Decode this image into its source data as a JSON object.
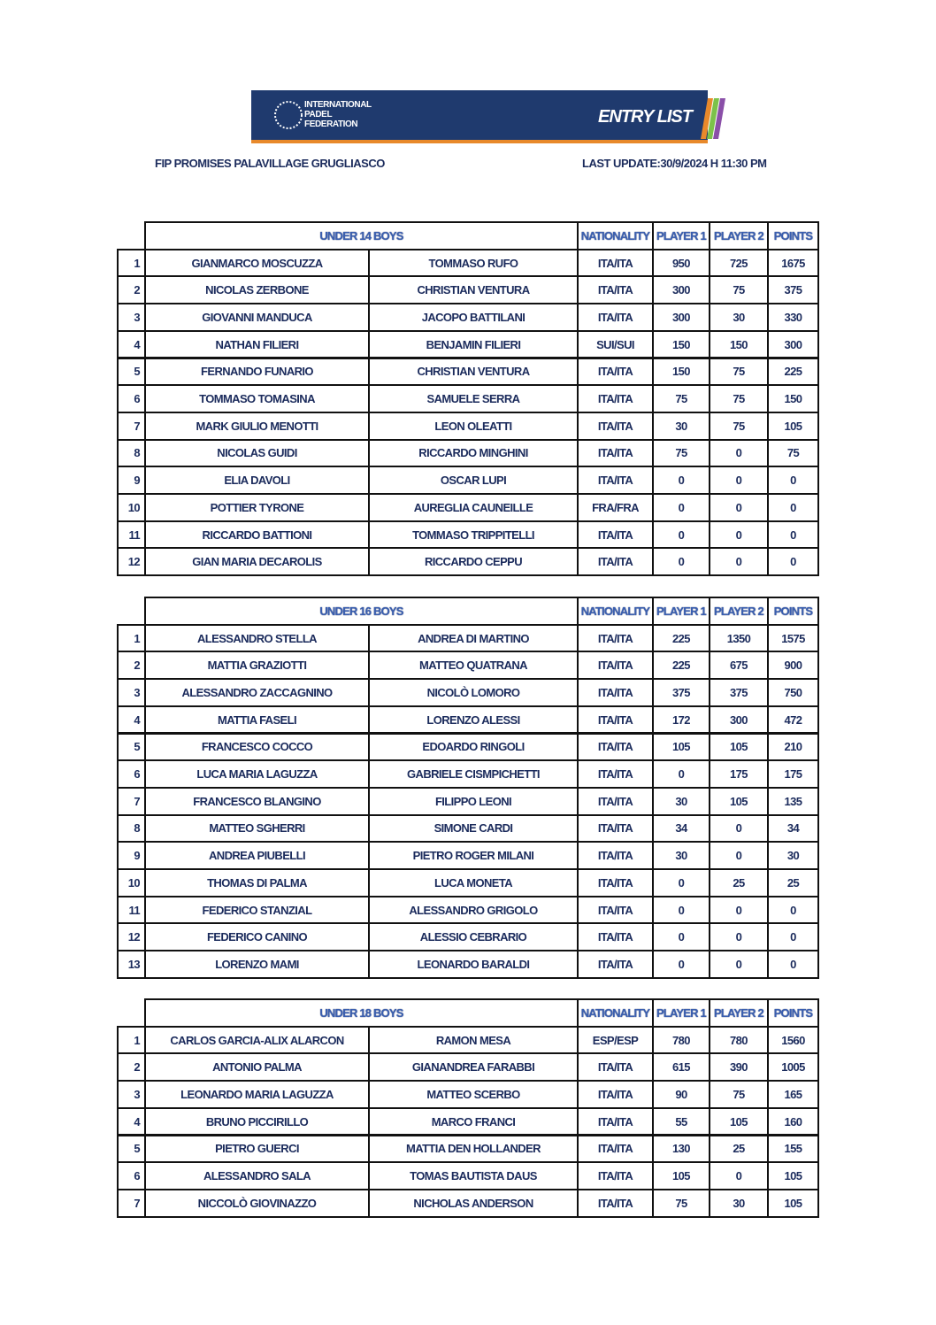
{
  "header": {
    "logo_text": [
      "INTERNATIONAL",
      "PADEL",
      "FEDERATION"
    ],
    "banner_title": "ENTRY LIST",
    "event": "FIP PROMISES PALAVILLAGE GRUGLIASCO",
    "last_update": "LAST UPDATE:30/9/2024 H 11:30 PM"
  },
  "tables": [
    {
      "category": "UNDER 14 BOYS",
      "columns": [
        "NATIONALITY",
        "PLAYER 1",
        "PLAYER 2",
        "POINTS"
      ],
      "rows": [
        [
          1,
          "GIANMARCO MOSCUZZA",
          "TOMMASO RUFO",
          "ITA/ITA",
          950,
          725,
          1675
        ],
        [
          2,
          "NICOLAS ZERBONE",
          "CHRISTIAN VENTURA",
          "ITA/ITA",
          300,
          75,
          375
        ],
        [
          3,
          "GIOVANNI MANDUCA",
          "JACOPO BATTILANI",
          "ITA/ITA",
          300,
          30,
          330
        ],
        [
          4,
          "NATHAN FILIERI",
          "BENJAMIN FILIERI",
          "SUI/SUI",
          150,
          150,
          300
        ],
        [
          5,
          "FERNANDO FUNARIO",
          "CHRISTIAN VENTURA",
          "ITA/ITA",
          150,
          75,
          225
        ],
        [
          6,
          "TOMMASO TOMASINA",
          "SAMUELE SERRA",
          "ITA/ITA",
          75,
          75,
          150
        ],
        [
          7,
          "MARK GIULIO MENOTTI",
          "LEON OLEATTI",
          "ITA/ITA",
          30,
          75,
          105
        ],
        [
          8,
          "NICOLAS GUIDI",
          "RICCARDO MINGHINI",
          "ITA/ITA",
          75,
          0,
          75
        ],
        [
          9,
          "ELIA DAVOLI",
          "OSCAR LUPI",
          "ITA/ITA",
          0,
          0,
          0
        ],
        [
          10,
          "POTTIER TYRONE",
          "AUREGLIA CAUNEILLE",
          "FRA/FRA",
          0,
          0,
          0
        ],
        [
          11,
          "RICCARDO BATTIONI",
          "TOMMASO TRIPPITELLI",
          "ITA/ITA",
          0,
          0,
          0
        ],
        [
          12,
          "GIAN MARIA DECAROLIS",
          "RICCARDO CEPPU",
          "ITA/ITA",
          0,
          0,
          0
        ]
      ]
    },
    {
      "category": "UNDER 16 BOYS",
      "columns": [
        "NATIONALITY",
        "PLAYER 1",
        "PLAYER 2",
        "POINTS"
      ],
      "rows": [
        [
          1,
          "ALESSANDRO STELLA",
          "ANDREA DI MARTINO",
          "ITA/ITA",
          225,
          1350,
          1575
        ],
        [
          2,
          "MATTIA GRAZIOTTI",
          "MATTEO QUATRANA",
          "ITA/ITA",
          225,
          675,
          900
        ],
        [
          3,
          "ALESSANDRO ZACCAGNINO",
          "NICOLÒ LOMORO",
          "ITA/ITA",
          375,
          375,
          750
        ],
        [
          4,
          "MATTIA FASELI",
          "LORENZO ALESSI",
          "ITA/ITA",
          172,
          300,
          472
        ],
        [
          5,
          "FRANCESCO COCCO",
          "EDOARDO RINGOLI",
          "ITA/ITA",
          105,
          105,
          210
        ],
        [
          6,
          "LUCA MARIA LAGUZZA",
          "GABRIELE CISMPICHETTI",
          "ITA/ITA",
          0,
          175,
          175
        ],
        [
          7,
          "FRANCESCO BLANGINO",
          "FILIPPO LEONI",
          "ITA/ITA",
          30,
          105,
          135
        ],
        [
          8,
          "MATTEO SGHERRI",
          "SIMONE CARDI",
          "ITA/ITA",
          34,
          0,
          34
        ],
        [
          9,
          "ANDREA PIUBELLI",
          "PIETRO ROGER MILANI",
          "ITA/ITA",
          30,
          0,
          30
        ],
        [
          10,
          "THOMAS DI PALMA",
          "LUCA MONETA",
          "ITA/ITA",
          0,
          25,
          25
        ],
        [
          11,
          "FEDERICO STANZIAL",
          "ALESSANDRO GRIGOLO",
          "ITA/ITA",
          0,
          0,
          0
        ],
        [
          12,
          "FEDERICO CANINO",
          "ALESSIO CEBRARIO",
          "ITA/ITA",
          0,
          0,
          0
        ],
        [
          13,
          "LORENZO MAMI",
          "LEONARDO BARALDI",
          "ITA/ITA",
          0,
          0,
          0
        ]
      ]
    },
    {
      "category": "UNDER 18 BOYS",
      "columns": [
        "NATIONALITY",
        "PLAYER 1",
        "PLAYER 2",
        "POINTS"
      ],
      "rows": [
        [
          1,
          "CARLOS GARCIA-ALIX ALARCON",
          "RAMON MESA",
          "ESP/ESP",
          780,
          780,
          1560
        ],
        [
          2,
          "ANTONIO PALMA",
          "GIANANDREA FARABBI",
          "ITA/ITA",
          615,
          390,
          1005
        ],
        [
          3,
          "LEONARDO MARIA LAGUZZA",
          "MATTEO SCERBO",
          "ITA/ITA",
          90,
          75,
          165
        ],
        [
          4,
          "BRUNO PICCIRILLO",
          "MARCO FRANCI",
          "ITA/ITA",
          55,
          105,
          160
        ],
        [
          5,
          "PIETRO GUERCI",
          "MATTIA DEN HOLLANDER",
          "ITA/ITA",
          130,
          25,
          155
        ],
        [
          6,
          "ALESSANDRO SALA",
          "TOMAS BAUTISTA DAUS",
          "ITA/ITA",
          105,
          0,
          105
        ],
        [
          7,
          "NICCOLÒ GIOVINAZZO",
          "NICHOLAS ANDERSON",
          "ITA/ITA",
          75,
          30,
          105
        ]
      ]
    }
  ]
}
